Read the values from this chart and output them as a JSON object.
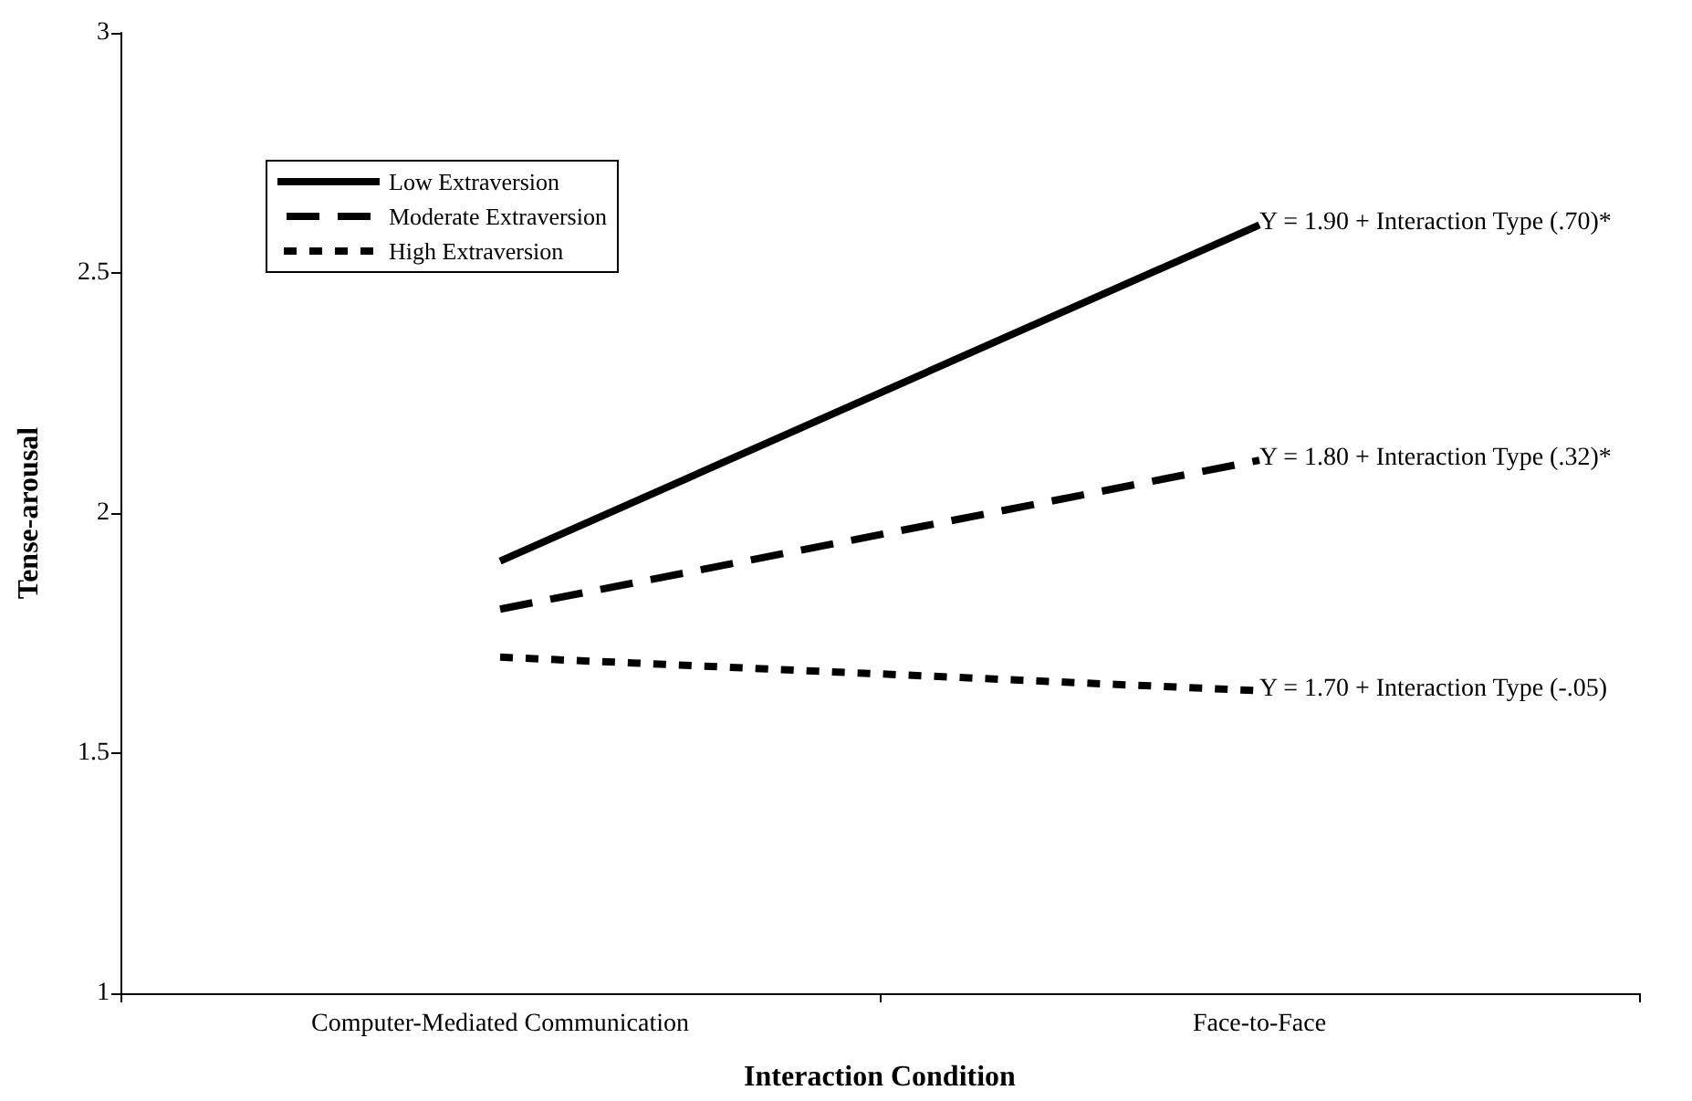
{
  "chart_data": {
    "type": "line",
    "xlabel": "Interaction Condition",
    "ylabel": "Tense-arousal",
    "categories": [
      "Computer-Mediated Communication",
      "Face-to-Face"
    ],
    "series": [
      {
        "name": "Low Extraversion",
        "color": "#000000",
        "line_style": "solid",
        "values": [
          1.9,
          2.6
        ]
      },
      {
        "name": "Moderate Extraversion",
        "color": "#000000",
        "line_style": "dashed",
        "values": [
          1.8,
          2.11
        ]
      },
      {
        "name": "High Extraversion",
        "color": "#000000",
        "line_style": "dotted",
        "values": [
          1.7,
          1.63
        ]
      }
    ],
    "annotations": [
      {
        "text": "Y = 1.90 + Interaction Type (.70)*",
        "x": "Face-to-Face",
        "y": 2.6
      },
      {
        "text": "Y = 1.80 + Interaction Type (.32)*",
        "x": "Face-to-Face",
        "y": 2.11
      },
      {
        "text": "Y = 1.70 + Interaction Type (-.05)",
        "x": "Face-to-Face",
        "y": 1.63
      }
    ],
    "ylim": [
      1,
      3
    ],
    "yticks": [
      1,
      1.5,
      2,
      2.5,
      3
    ],
    "grid": false,
    "legend": "top left",
    "marker": "none"
  }
}
